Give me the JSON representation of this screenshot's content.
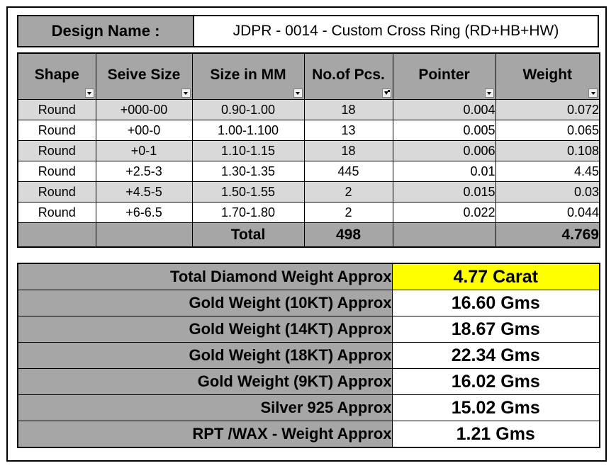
{
  "design": {
    "label": "Design Name :",
    "value": "JDPR - 0014 - Custom Cross Ring (RD+HB+HW)"
  },
  "table": {
    "headers": [
      "Shape",
      "Seive Size",
      "Size in MM",
      "No.of Pcs.",
      "Pointer",
      "Weight"
    ],
    "rows": [
      [
        "Round",
        "+000-00",
        "0.90-1.00",
        "18",
        "0.004",
        "0.072"
      ],
      [
        "Round",
        "+00-0",
        "1.00-1.100",
        "13",
        "0.005",
        "0.065"
      ],
      [
        "Round",
        "+0-1",
        "1.10-1.15",
        "18",
        "0.006",
        "0.108"
      ],
      [
        "Round",
        "+2.5-3",
        "1.30-1.35",
        "445",
        "0.01",
        "4.45"
      ],
      [
        "Round",
        "+4.5-5",
        "1.50-1.55",
        "2",
        "0.015",
        "0.03"
      ],
      [
        "Round",
        "+6-6.5",
        "1.70-1.80",
        "2",
        "0.022",
        "0.044"
      ]
    ],
    "total": {
      "label": "Total",
      "pcs": "498",
      "weight": "4.769"
    }
  },
  "summary": [
    {
      "label": "Total Diamond Weight Approx",
      "value": "4.77 Carat"
    },
    {
      "label": "Gold Weight (10KT) Approx",
      "value": "16.60 Gms"
    },
    {
      "label": "Gold Weight (14KT) Approx",
      "value": "18.67 Gms"
    },
    {
      "label": "Gold Weight (18KT) Approx",
      "value": "22.34 Gms"
    },
    {
      "label": "Gold Weight (9KT) Approx",
      "value": "16.02 Gms"
    },
    {
      "label": "Silver 925 Approx",
      "value": "15.02 Gms"
    },
    {
      "label": "RPT /WAX - Weight Approx",
      "value": "1.21 Gms"
    }
  ],
  "colors": {
    "header_gray": "#a6a6a6",
    "row_alt": "#d9d9d9",
    "highlight": "#ffff00"
  },
  "icons": {
    "filter": "filter-dropdown-icon",
    "filter_active": "filter-active-icon"
  }
}
